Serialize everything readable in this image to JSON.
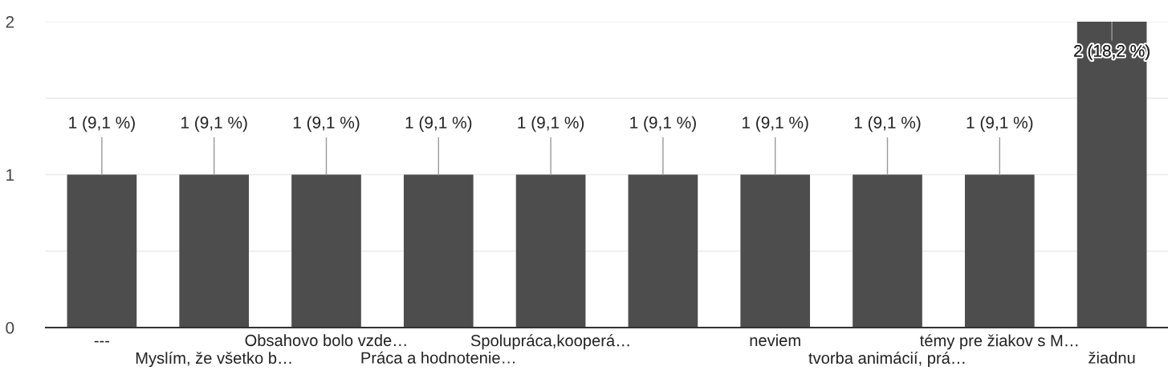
{
  "chart_data": {
    "type": "bar",
    "categories": [
      "---",
      "Myslím, že všetko b…",
      "Obsahovo bolo vzde…",
      "Práca a hodnotenie…",
      "Spolupráca,kooperá…",
      null,
      "neviem",
      "tvorba animácií, prá…",
      "témy pre žiakov s M…",
      "žiadnu"
    ],
    "values": [
      1,
      1,
      1,
      1,
      1,
      1,
      1,
      1,
      1,
      2
    ],
    "value_labels": [
      "1 (9,1 %)",
      "1 (9,1 %)",
      "1 (9,1 %)",
      "1 (9,1 %)",
      "1 (9,1 %)",
      "1 (9,1 %)",
      "1 (9,1 %)",
      "1 (9,1 %)",
      "1 (9,1 %)",
      "2 (18,2 %)"
    ],
    "color": "#4d4d4d",
    "ylim": [
      0,
      2
    ],
    "yticks": [
      0,
      {
        "value": 0.5,
        "label": null
      },
      1,
      {
        "value": 1.5,
        "label": null
      },
      2
    ],
    "grid": "y",
    "legend": false
  }
}
